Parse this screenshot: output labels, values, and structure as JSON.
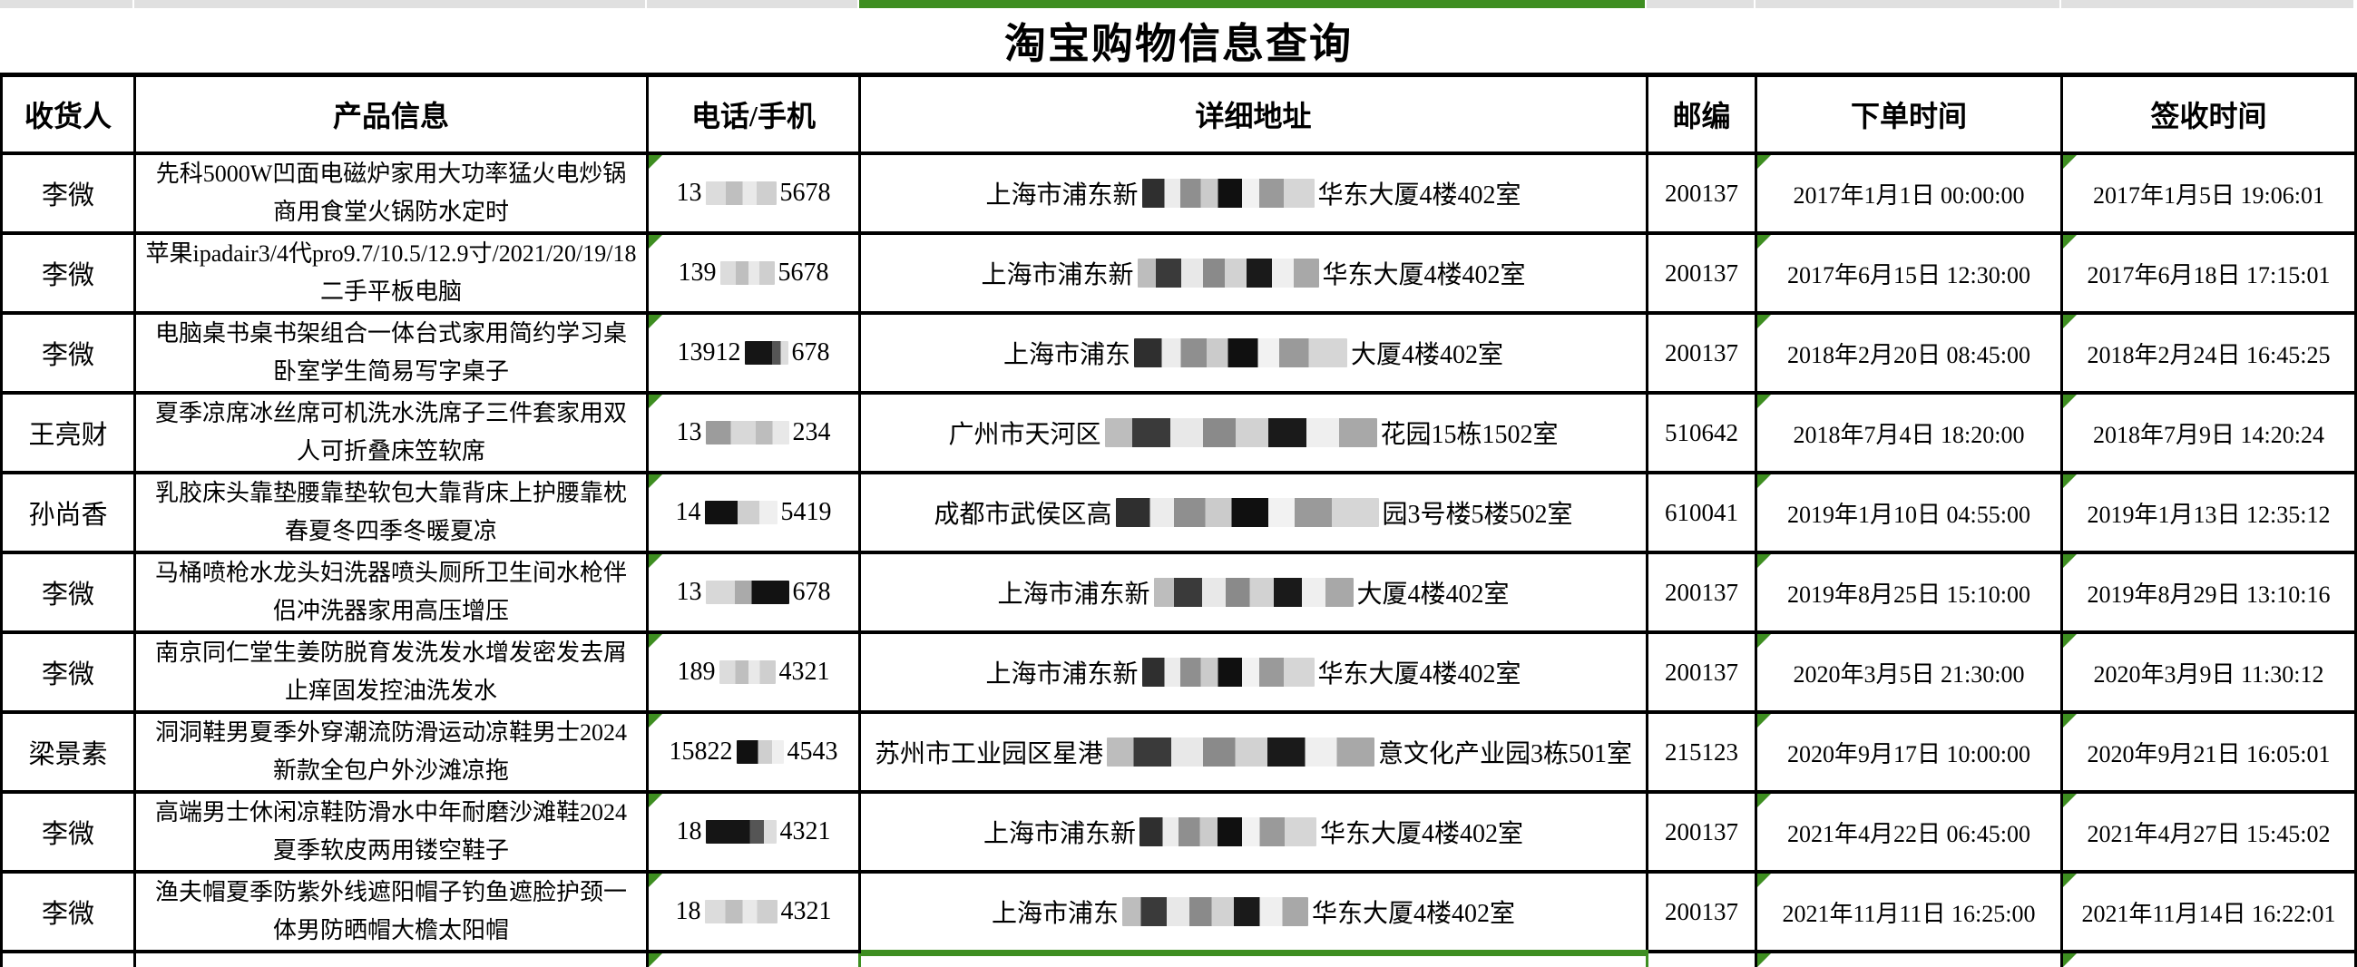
{
  "app": {
    "title": "淘宝购物信息查询"
  },
  "selection": {
    "selected_column": "详细地址",
    "accent_green": "#3e8e21"
  },
  "table": {
    "headers": [
      "收货人",
      "产品信息",
      "电话/手机",
      "详细地址",
      "邮编",
      "下单时间",
      "签收时间"
    ],
    "rows": [
      {
        "recipient": "李微",
        "product": "先科5000W凹面电磁炉家用大功率猛火电炒锅商用食堂火锅防水定时",
        "phone": {
          "pre": "13",
          "post": "5678",
          "cw": 78,
          "pat": "light"
        },
        "address": {
          "pre": "上海市浦东新",
          "post": "华东大厦4楼402室",
          "cw": 190,
          "pat": "mixA"
        },
        "zip": "200137",
        "ordered": "2017年1月1日 00:00:00",
        "signed": "2017年1月5日 19:06:01"
      },
      {
        "recipient": "李微",
        "product": "苹果ipadair3/4代pro9.7/10.5/12.9寸/2021/20/19/18二手平板电脑",
        "phone": {
          "pre": "139",
          "post": "5678",
          "cw": 60,
          "pat": "light"
        },
        "address": {
          "pre": "上海市浦东新",
          "post": "华东大厦4楼402室",
          "cw": 200,
          "pat": "mixB"
        },
        "zip": "200137",
        "ordered": "2017年6月15日 12:30:00",
        "signed": "2017年6月18日 17:15:01"
      },
      {
        "recipient": "李微",
        "product": "电脑桌书桌书架组合一体台式家用简约学习桌卧室学生简易写字桌子",
        "phone": {
          "pre": "13912",
          "post": "678",
          "cw": 48,
          "pat": "dark"
        },
        "address": {
          "pre": "上海市浦东",
          "post": "大厦4楼402室",
          "cw": 235,
          "pat": "mixA"
        },
        "zip": "200137",
        "ordered": "2018年2月20日 08:45:00",
        "signed": "2018年2月24日 16:45:25"
      },
      {
        "recipient": "王亮财",
        "product": "夏季凉席冰丝席可机洗水洗席子三件套家用双人可折叠床笠软席",
        "phone": {
          "pre": "13",
          "post": "234",
          "cw": 92,
          "pat": "mixP"
        },
        "address": {
          "pre": "广州市天河区",
          "post": "花园15栋1502室",
          "cw": 300,
          "pat": "mixB"
        },
        "zip": "510642",
        "ordered": "2018年7月4日 18:20:00",
        "signed": "2018年7月9日 14:20:24"
      },
      {
        "recipient": "孙尚香",
        "product": "乳胶床头靠垫腰靠垫软包大靠背床上护腰靠枕春夏冬四季冬暖夏凉",
        "phone": {
          "pre": "14",
          "post": "5419",
          "cw": 80,
          "pat": "darkL"
        },
        "address": {
          "pre": "成都市武侯区高",
          "post": "园3号楼5楼502室",
          "cw": 290,
          "pat": "mixA"
        },
        "zip": "610041",
        "ordered": "2019年1月10日 04:55:00",
        "signed": "2019年1月13日 12:35:12"
      },
      {
        "recipient": "李微",
        "product": "马桶喷枪水龙头妇洗器喷头厕所卫生间水枪伴侣冲洗器家用高压增压",
        "phone": {
          "pre": "13",
          "post": "678",
          "cw": 92,
          "pat": "darkR"
        },
        "address": {
          "pre": "上海市浦东新",
          "post": "大厦4楼402室",
          "cw": 220,
          "pat": "mixB"
        },
        "zip": "200137",
        "ordered": "2019年8月25日 15:10:00",
        "signed": "2019年8月29日 13:10:16"
      },
      {
        "recipient": "李微",
        "product": "南京同仁堂生姜防脱育发洗发水增发密发去屑止痒固发控油洗发水",
        "phone": {
          "pre": "189",
          "post": "4321",
          "cw": 62,
          "pat": "light"
        },
        "address": {
          "pre": "上海市浦东新",
          "post": "华东大厦4楼402室",
          "cw": 190,
          "pat": "mixA"
        },
        "zip": "200137",
        "ordered": "2020年3月5日 21:30:00",
        "signed": "2020年3月9日 11:30:12"
      },
      {
        "recipient": "梁景素",
        "product": "洞洞鞋男夏季外穿潮流防滑运动凉鞋男士2024新款全包户外沙滩凉拖",
        "phone": {
          "pre": "15822",
          "post": "4543",
          "cw": 52,
          "pat": "darkL"
        },
        "address": {
          "pre": "苏州市工业园区星港",
          "post": "意文化产业园3栋501室",
          "cw": 295,
          "pat": "mixB"
        },
        "zip": "215123",
        "ordered": "2020年9月17日 10:00:00",
        "signed": "2020年9月21日 16:05:01"
      },
      {
        "recipient": "李微",
        "product": "高端男士休闲凉鞋防滑水中年耐磨沙滩鞋2024夏季软皮两用镂空鞋子",
        "phone": {
          "pre": "18",
          "post": "4321",
          "cw": 78,
          "pat": "dark"
        },
        "address": {
          "pre": "上海市浦东新",
          "post": "华东大厦4楼402室",
          "cw": 195,
          "pat": "mixA"
        },
        "zip": "200137",
        "ordered": "2021年4月22日 06:45:00",
        "signed": "2021年4月27日 15:45:02"
      },
      {
        "recipient": "李微",
        "product": "渔夫帽夏季防紫外线遮阳帽子钓鱼遮脸护颈一体男防晒帽大檐太阳帽",
        "phone": {
          "pre": "18",
          "post": "4321",
          "cw": 80,
          "pat": "light"
        },
        "address": {
          "pre": "上海市浦东",
          "post": "华东大厦4楼402室",
          "cw": 205,
          "pat": "mixB"
        },
        "zip": "200137",
        "ordered": "2021年11月11日 16:25:00",
        "signed": "2021年11月14日 16:22:01"
      }
    ]
  }
}
